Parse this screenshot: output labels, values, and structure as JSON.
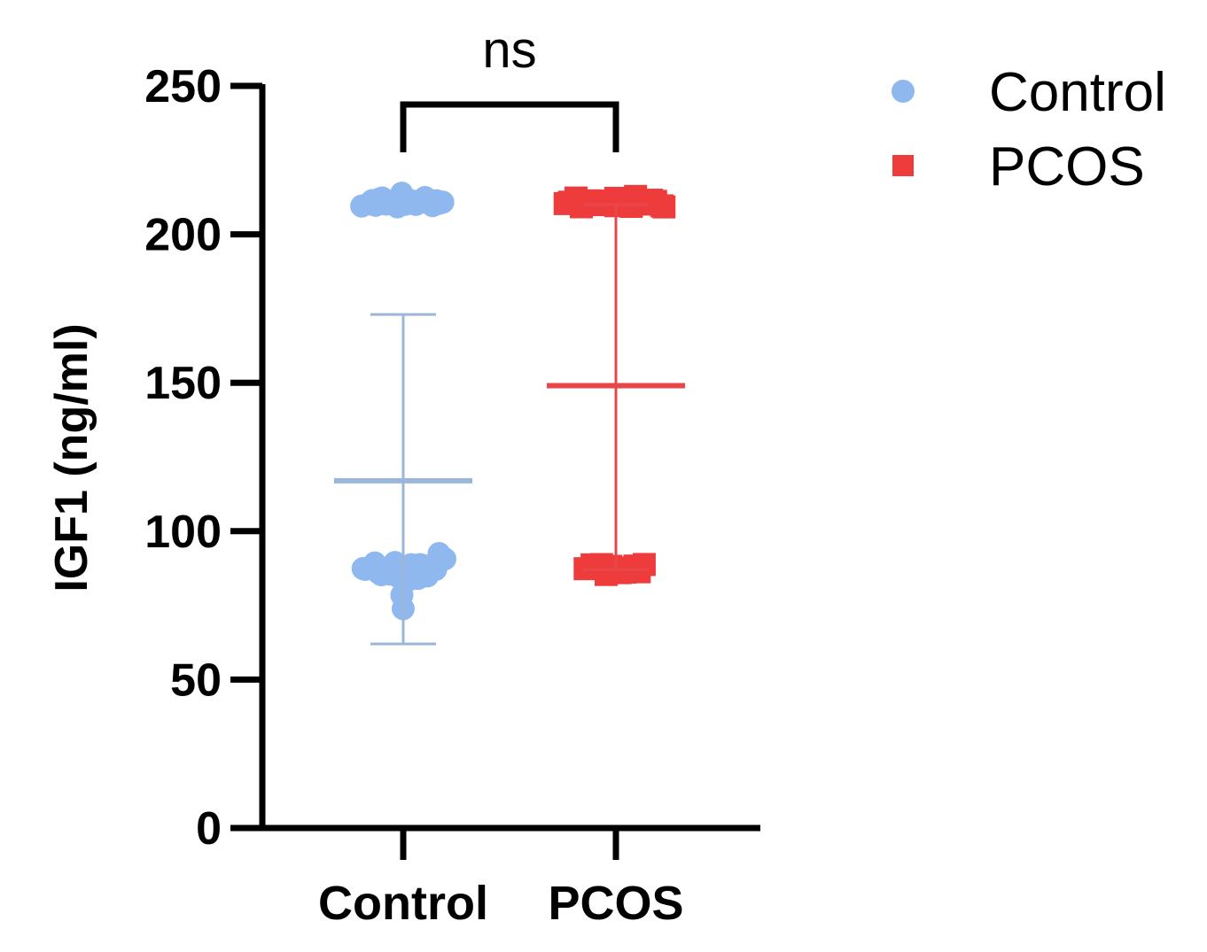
{
  "chart_data": {
    "type": "scatter",
    "title": "",
    "ylabel": "IGF1 (ng/ml)",
    "xlabel": "",
    "ylim": [
      0,
      250
    ],
    "yticks": [
      0,
      50,
      100,
      150,
      200,
      250
    ],
    "categories": [
      "Control",
      "PCOS"
    ],
    "grid": false,
    "legend_position": "top-right",
    "significance": {
      "label": "ns",
      "between": [
        "Control",
        "PCOS"
      ]
    },
    "series": [
      {
        "name": "Control",
        "marker": "circle",
        "color": "#8fb8ee",
        "mean": 117,
        "error_low": 62,
        "error_high": 173,
        "points": [
          210,
          211,
          212,
          210,
          211,
          212,
          210,
          211,
          212,
          213,
          209,
          210,
          211,
          212,
          210,
          211,
          212,
          211,
          210,
          212,
          211,
          210,
          87,
          88,
          86,
          87,
          89,
          88,
          87,
          86,
          88,
          87,
          89,
          86,
          87,
          88,
          87,
          86,
          88,
          87,
          89,
          88,
          87,
          86,
          88,
          87,
          84,
          85,
          86,
          83,
          85,
          84,
          86,
          85,
          92,
          90,
          78,
          74
        ]
      },
      {
        "name": "PCOS",
        "marker": "square",
        "color": "#ee3b3b",
        "mean": 149,
        "error_low": 87,
        "error_high": 210,
        "points": [
          210,
          211,
          212,
          210,
          211,
          212,
          210,
          211,
          212,
          211,
          210,
          212,
          211,
          210,
          212,
          211,
          210,
          212,
          211,
          210,
          209,
          213,
          87,
          88,
          86,
          87,
          88,
          86,
          87,
          88,
          87,
          86,
          88,
          87,
          86,
          87,
          88,
          87,
          86,
          88
        ]
      }
    ]
  }
}
